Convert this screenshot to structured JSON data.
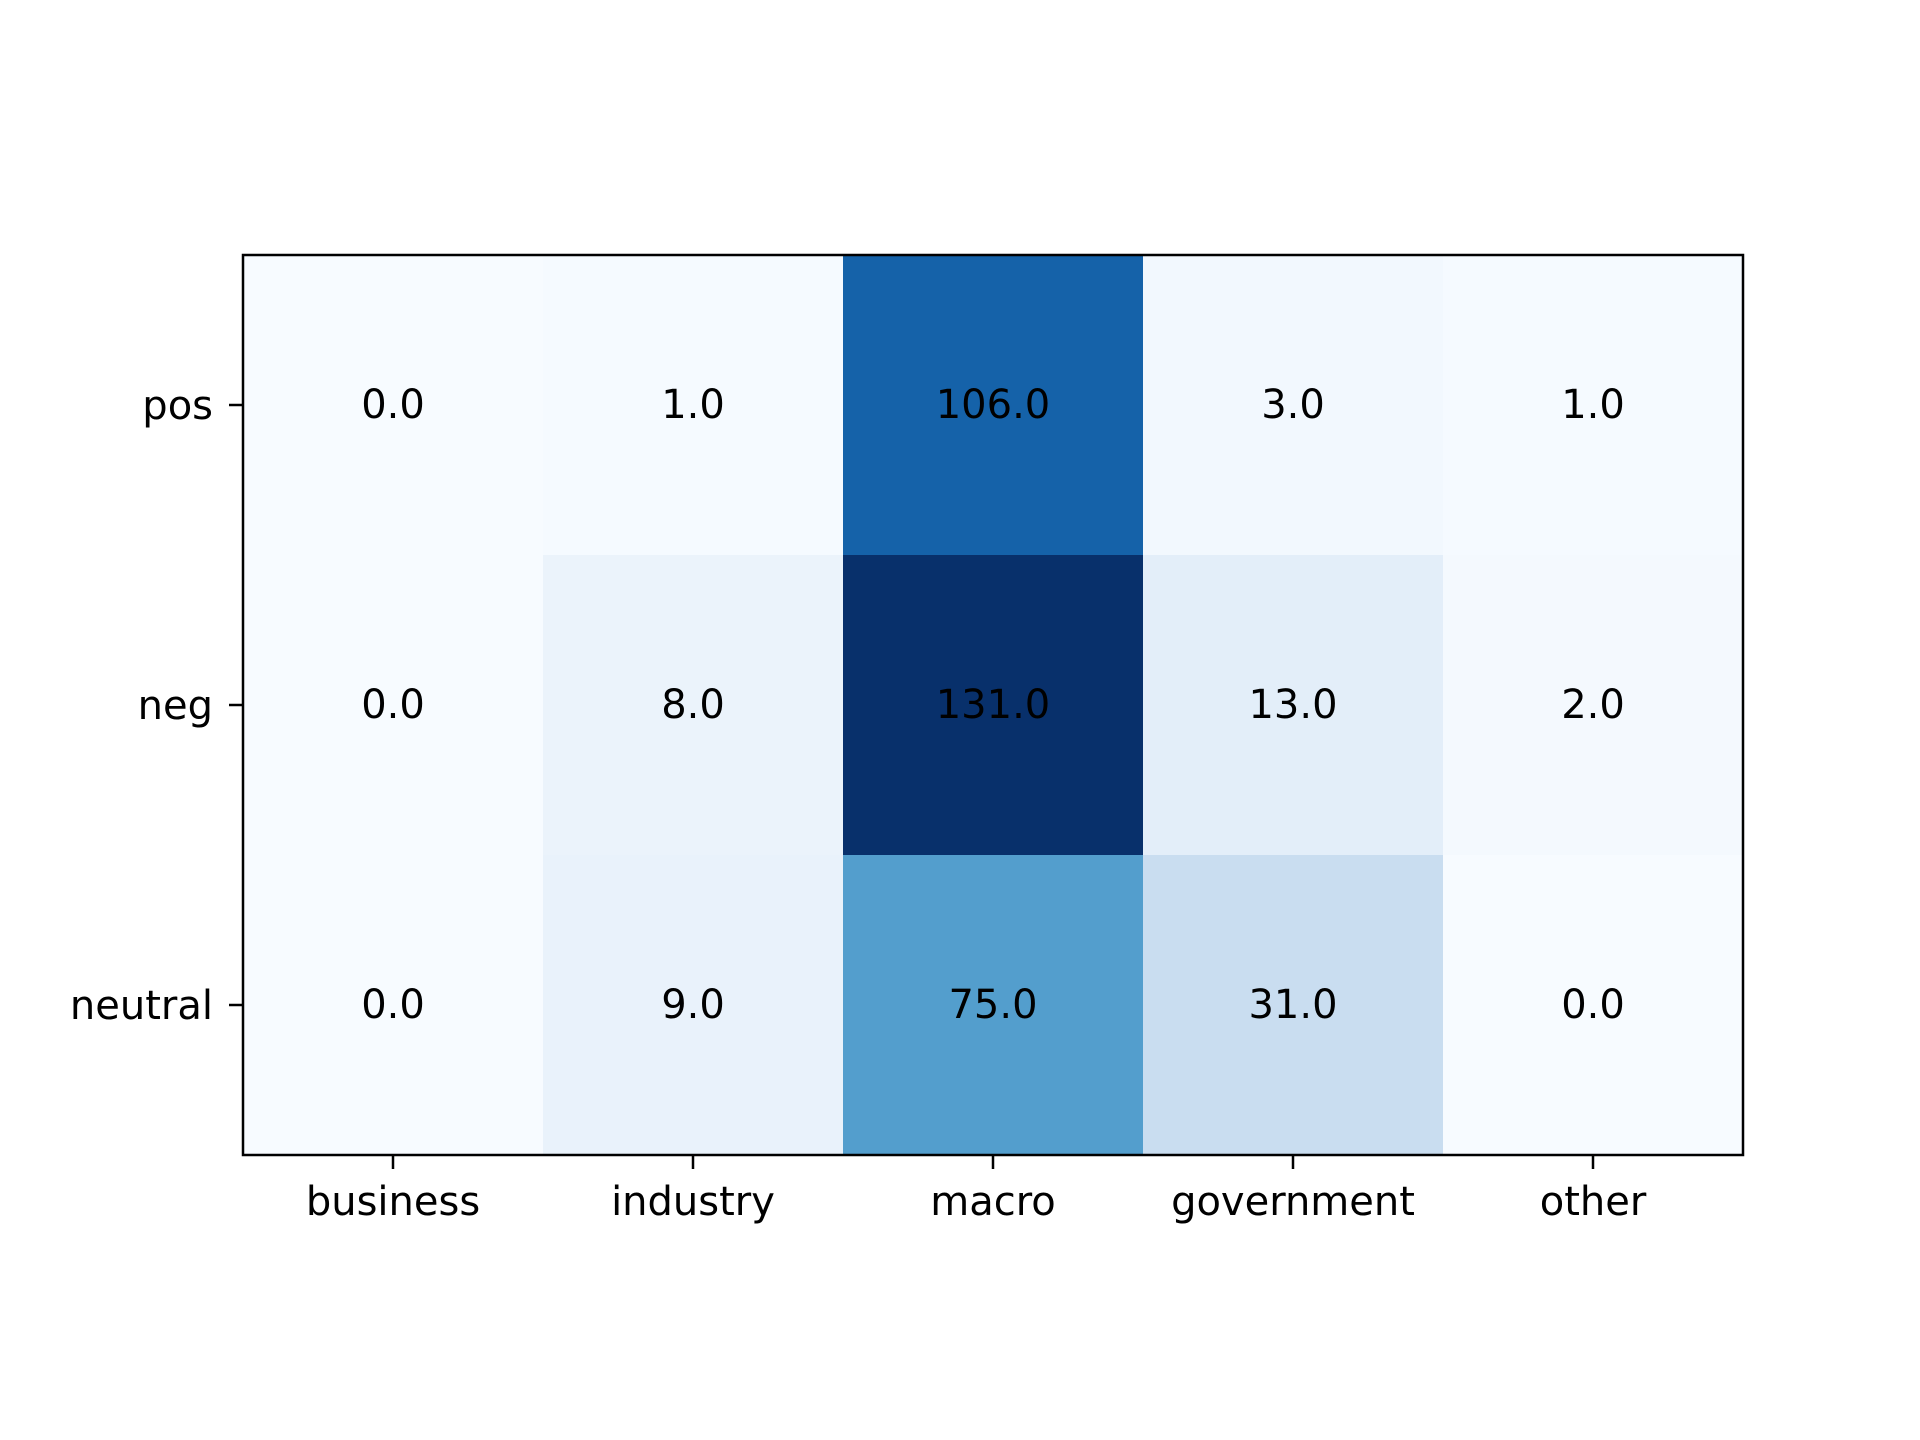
{
  "chart_data": {
    "type": "heatmap",
    "title": "",
    "xlabel": "",
    "ylabel": "",
    "x_categories": [
      "business",
      "industry",
      "macro",
      "government",
      "other"
    ],
    "y_categories": [
      "pos",
      "neg",
      "neutral"
    ],
    "values": [
      [
        0.0,
        1.0,
        106.0,
        3.0,
        1.0
      ],
      [
        0.0,
        8.0,
        131.0,
        13.0,
        2.0
      ],
      [
        0.0,
        9.0,
        75.0,
        31.0,
        0.0
      ]
    ],
    "cell_labels": [
      [
        "0.0",
        "1.0",
        "106.0",
        "3.0",
        "1.0"
      ],
      [
        "0.0",
        "8.0",
        "131.0",
        "13.0",
        "2.0"
      ],
      [
        "0.0",
        "9.0",
        "75.0",
        "31.0",
        "0.0"
      ]
    ],
    "colormap": "Blues",
    "color_range": [
      0,
      131
    ],
    "colorbar": false,
    "grid": false,
    "colors": {
      "low": "#f7fbff",
      "high": "#08306b",
      "label_text": "#000000",
      "frame": "#000000"
    }
  }
}
